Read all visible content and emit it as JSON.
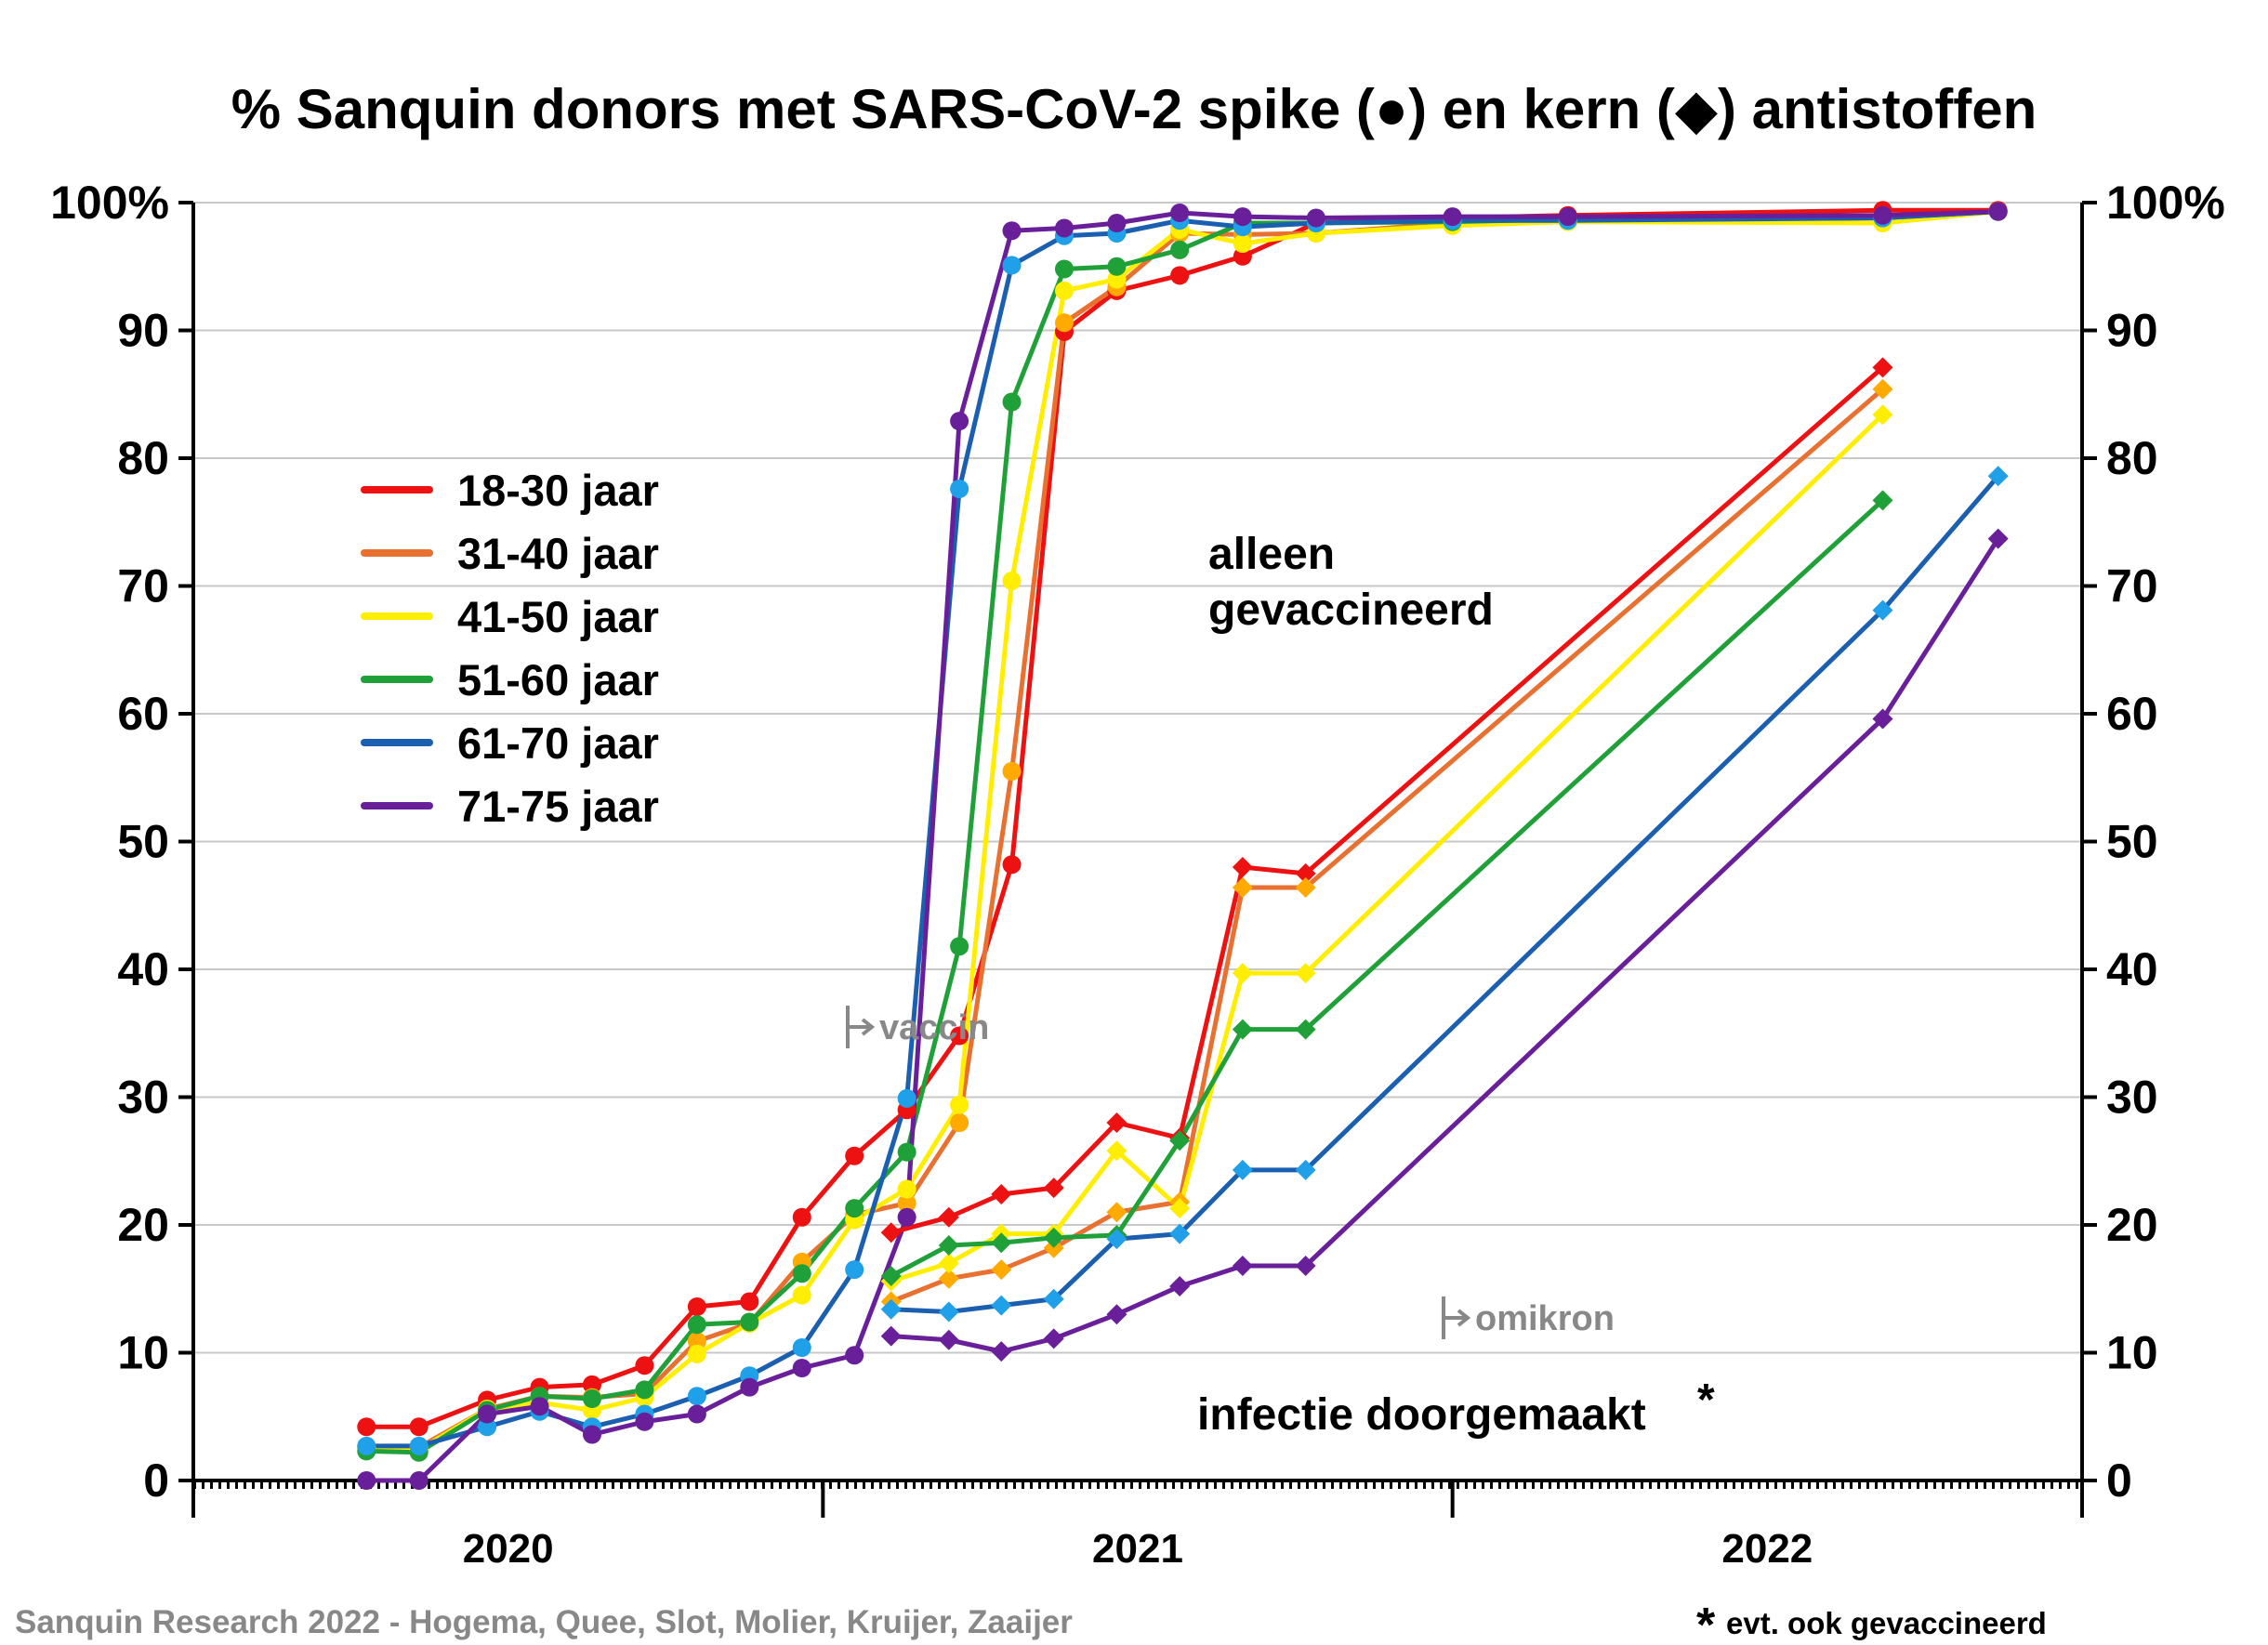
{
  "chart_data": {
    "type": "line",
    "title": "% Sanquin donors met SARS-CoV-2 spike (●) en kern (◆) antistoffen",
    "ylim": [
      0,
      100
    ],
    "yticks_left": [
      "100%",
      "90",
      "80",
      "70",
      "60",
      "50",
      "40",
      "30",
      "20",
      "10",
      "0"
    ],
    "yticks_right": [
      "100%",
      "90",
      "80",
      "70",
      "60",
      "50",
      "40",
      "30",
      "20",
      "10",
      "0"
    ],
    "ytick_values": [
      100,
      90,
      80,
      70,
      60,
      50,
      40,
      30,
      20,
      10,
      0
    ],
    "x_unit": "months since January 2020",
    "xlim": [
      0,
      36
    ],
    "year_labels": [
      {
        "label": "2020",
        "center": 6
      },
      {
        "label": "2021",
        "center": 18
      },
      {
        "label": "2022",
        "center": 30
      }
    ],
    "year_boundaries": [
      0,
      12,
      24,
      36
    ],
    "grid": true,
    "legend_position": "left-center",
    "legend": [
      {
        "label": "18-30 jaar",
        "color": "#ee1111"
      },
      {
        "label": "31-40 jaar",
        "color": "#e87030"
      },
      {
        "label": "41-50 jaar",
        "color": "#ffee00"
      },
      {
        "label": "51-60 jaar",
        "color": "#20a038"
      },
      {
        "label": "61-70 jaar",
        "color": "#1a5fb0"
      },
      {
        "label": "71-75 jaar",
        "color": "#6a1f9a"
      }
    ],
    "annotations": {
      "vaccinated_line1": "alleen",
      "vaccinated_line2": "gevaccineerd",
      "vaccin": "vaccin",
      "omikron": "omikron",
      "infected": "infectie doorgemaakt",
      "asterisk": "*"
    },
    "spike_series": [
      {
        "name": "18-30 jaar",
        "line": "#ee1111",
        "marker": "#ee1111",
        "x": [
          3.3,
          4.3,
          5.6,
          6.6,
          7.6,
          8.6,
          9.6,
          10.6,
          11.6,
          12.6,
          13.6,
          14.6,
          15.6,
          16.6,
          17.6,
          18.8,
          20.0,
          21.4,
          24.0,
          26.2,
          32.2,
          34.4
        ],
        "y": [
          4.2,
          4.2,
          6.3,
          7.3,
          7.5,
          9.0,
          13.6,
          14.0,
          20.6,
          25.4,
          29.0,
          34.8,
          48.2,
          89.9,
          93.1,
          94.3,
          95.8,
          98.4,
          98.8,
          99.0,
          99.4,
          99.4
        ]
      },
      {
        "name": "31-40 jaar",
        "line": "#e87030",
        "marker": "#ffaa00",
        "x": [
          3.3,
          4.3,
          5.6,
          6.6,
          7.6,
          8.6,
          9.6,
          10.6,
          11.6,
          12.6,
          13.6,
          14.6,
          15.6,
          16.6,
          17.6,
          18.8,
          20.0,
          21.4,
          24.0,
          26.2,
          32.2,
          34.4
        ],
        "y": [
          2.6,
          2.6,
          5.6,
          6.6,
          6.5,
          6.8,
          10.9,
          12.3,
          17.1,
          20.8,
          21.7,
          28.0,
          55.5,
          90.6,
          93.4,
          97.6,
          97.5,
          97.6,
          98.4,
          98.6,
          98.8,
          99.3
        ]
      },
      {
        "name": "41-50 jaar",
        "line": "#ffee00",
        "marker": "#ffee00",
        "x": [
          3.3,
          4.3,
          5.6,
          6.6,
          7.6,
          8.6,
          9.6,
          10.6,
          11.6,
          12.6,
          13.6,
          14.6,
          15.6,
          16.6,
          17.6,
          18.8,
          20.0,
          21.4,
          24.0,
          26.2,
          32.2,
          34.4
        ],
        "y": [
          2.6,
          2.4,
          5.6,
          6.1,
          5.5,
          6.5,
          9.9,
          12.3,
          14.5,
          20.4,
          22.8,
          29.4,
          70.4,
          93.1,
          94.0,
          97.9,
          96.8,
          97.6,
          98.2,
          98.5,
          98.4,
          99.3
        ]
      },
      {
        "name": "51-60 jaar",
        "line": "#20a038",
        "marker": "#20a038",
        "x": [
          3.3,
          4.3,
          5.6,
          6.6,
          7.6,
          8.6,
          9.6,
          10.6,
          11.6,
          12.6,
          13.6,
          14.6,
          15.6,
          16.6,
          17.6,
          18.8,
          20.0,
          21.4,
          24.0,
          26.2,
          32.2,
          34.4
        ],
        "y": [
          2.3,
          2.2,
          5.5,
          6.6,
          6.4,
          7.1,
          12.2,
          12.4,
          16.2,
          21.3,
          25.7,
          41.8,
          84.4,
          94.8,
          95.0,
          96.3,
          98.4,
          98.4,
          98.5,
          98.7,
          98.8,
          99.3
        ]
      },
      {
        "name": "61-70 jaar",
        "line": "#1a5fb0",
        "marker": "#1fa0e8",
        "x": [
          3.3,
          4.3,
          5.6,
          6.6,
          7.6,
          8.6,
          9.6,
          10.6,
          11.6,
          12.6,
          13.6,
          14.6,
          15.6,
          16.6,
          17.6,
          18.8,
          20.0,
          21.4,
          24.0,
          26.2,
          32.2,
          34.4
        ],
        "y": [
          2.7,
          2.7,
          4.2,
          5.4,
          4.2,
          5.2,
          6.6,
          8.2,
          10.4,
          16.5,
          29.9,
          77.6,
          95.1,
          97.4,
          97.6,
          98.6,
          98.1,
          98.4,
          98.6,
          98.6,
          98.8,
          99.3
        ]
      },
      {
        "name": "71-75 jaar",
        "line": "#6a1f9a",
        "marker": "#6a1f9a",
        "x": [
          3.3,
          4.3,
          5.6,
          6.6,
          7.6,
          8.6,
          9.6,
          10.6,
          11.6,
          12.6,
          13.6,
          14.6,
          15.6,
          16.6,
          17.6,
          18.8,
          20.0,
          21.4,
          24.0,
          26.2,
          32.2,
          34.4
        ],
        "y": [
          0.0,
          0.0,
          5.2,
          5.8,
          3.6,
          4.6,
          5.2,
          7.3,
          8.8,
          9.8,
          20.6,
          82.9,
          97.8,
          98.0,
          98.4,
          99.2,
          98.9,
          98.8,
          98.9,
          98.9,
          99.0,
          99.3
        ]
      }
    ],
    "kern_series": [
      {
        "name": "18-30 jaar",
        "line": "#ee1111",
        "marker": "#ee1111",
        "x": [
          13.3,
          14.4,
          15.4,
          16.4,
          17.6,
          18.8,
          20.0,
          21.2,
          32.2
        ],
        "y": [
          19.4,
          20.6,
          22.4,
          22.9,
          28.0,
          26.8,
          48.0,
          47.5,
          87.1
        ]
      },
      {
        "name": "31-40 jaar",
        "line": "#e87030",
        "marker": "#ffaa00",
        "x": [
          13.3,
          14.4,
          15.4,
          16.4,
          17.6,
          18.8,
          20.0,
          21.2,
          32.2
        ],
        "y": [
          14.0,
          15.8,
          16.5,
          18.2,
          21.0,
          21.8,
          46.4,
          46.4,
          85.4
        ]
      },
      {
        "name": "41-50 jaar",
        "line": "#ffee00",
        "marker": "#ffee00",
        "x": [
          13.3,
          14.4,
          15.4,
          16.4,
          17.6,
          18.8,
          20.0,
          21.2,
          32.2
        ],
        "y": [
          15.6,
          17.0,
          19.3,
          19.3,
          25.8,
          21.3,
          39.7,
          39.7,
          83.4
        ]
      },
      {
        "name": "51-60 jaar",
        "line": "#20a038",
        "marker": "#20a038",
        "x": [
          13.3,
          14.4,
          15.4,
          16.4,
          17.6,
          18.8,
          20.0,
          21.2,
          32.2
        ],
        "y": [
          16.0,
          18.4,
          18.6,
          19.0,
          19.2,
          26.6,
          35.3,
          35.3,
          76.7
        ]
      },
      {
        "name": "61-70 jaar",
        "line": "#1a5fb0",
        "marker": "#1fa0e8",
        "x": [
          13.3,
          14.4,
          15.4,
          16.4,
          17.6,
          18.8,
          20.0,
          21.2,
          32.2,
          34.4
        ],
        "y": [
          13.4,
          13.2,
          13.7,
          14.2,
          18.9,
          19.3,
          24.3,
          24.3,
          68.1,
          78.6
        ]
      },
      {
        "name": "71-75 jaar",
        "line": "#6a1f9a",
        "marker": "#6a1f9a",
        "x": [
          13.3,
          14.4,
          15.4,
          16.4,
          17.6,
          18.8,
          20.0,
          21.2,
          32.2,
          34.4
        ],
        "y": [
          11.3,
          11.0,
          10.1,
          11.1,
          13.0,
          15.2,
          16.8,
          16.8,
          59.6,
          73.7
        ]
      }
    ],
    "credit": "Sanquin Research 2022 - Hogema, Quee, Slot, Molier, Kruijer, Zaaijer",
    "footnote_star": "*",
    "footnote": "evt. ook gevaccineerd"
  }
}
